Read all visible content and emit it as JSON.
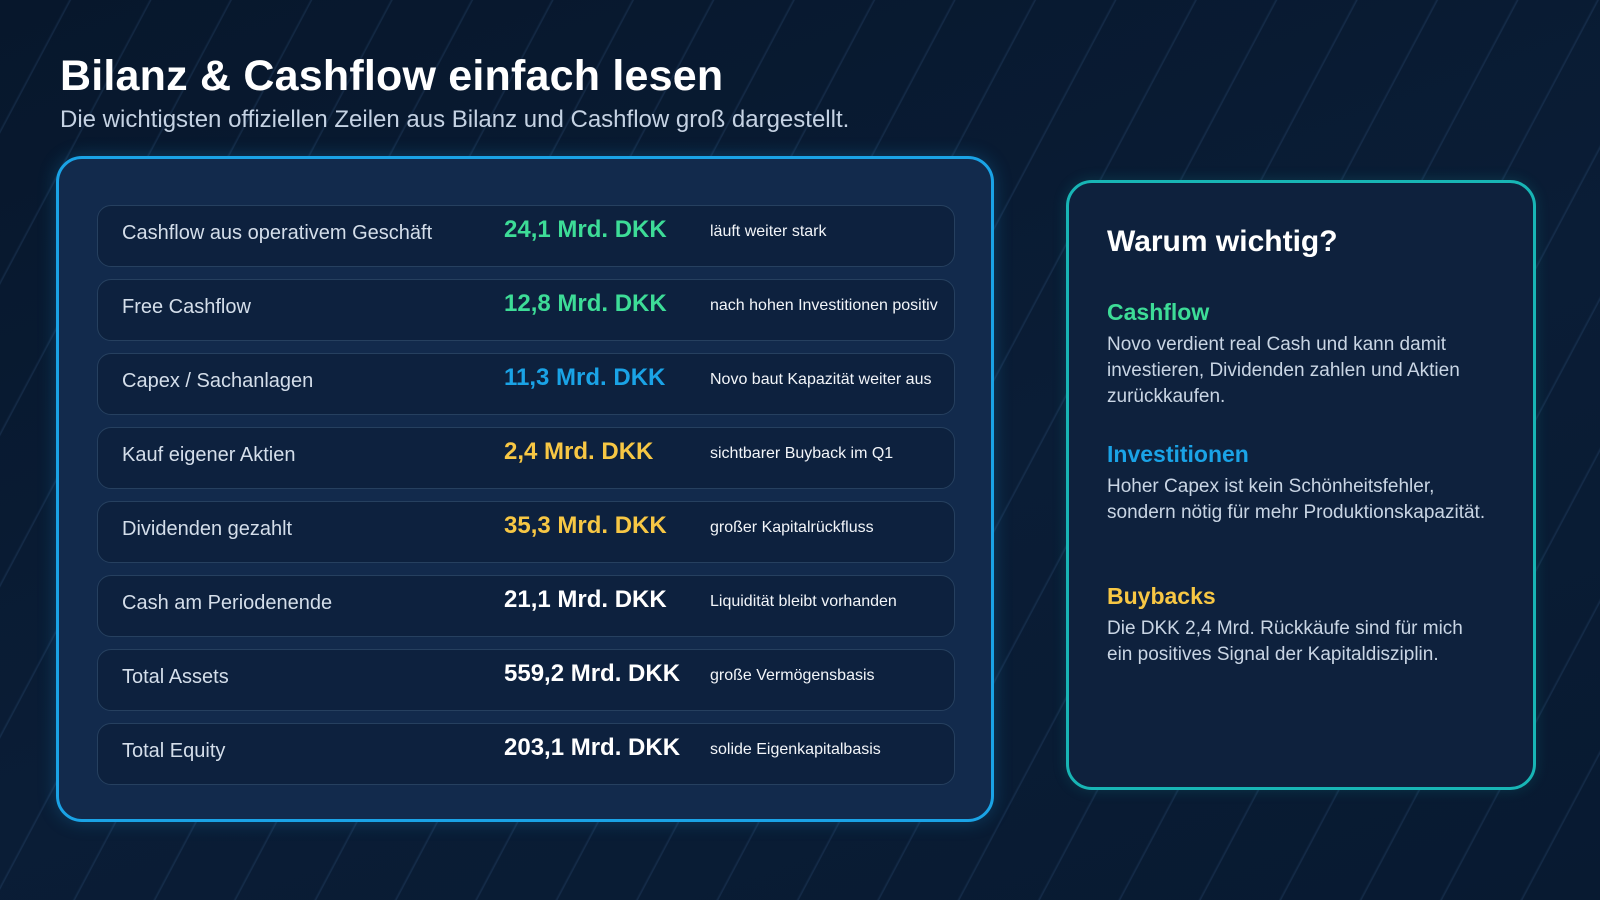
{
  "header": {
    "title": "Bilanz & Cashflow einfach lesen",
    "subtitle": "Die wichtigsten offiziellen Zeilen aus Bilanz und Cashflow groß dargestellt."
  },
  "rows": [
    {
      "label": "Cashflow aus operativem Geschäft",
      "value": "24,1 Mrd. DKK",
      "note": "läuft weiter stark",
      "value_color": "#3ddc97"
    },
    {
      "label": "Free Cashflow",
      "value": "12,8 Mrd. DKK",
      "note": "nach hohen Investitionen positiv",
      "value_color": "#3ddc97"
    },
    {
      "label": "Capex / Sachanlagen",
      "value": "11,3 Mrd. DKK",
      "note": "Novo baut Kapazität weiter aus",
      "value_color": "#1aa3e6"
    },
    {
      "label": "Kauf eigener Aktien",
      "value": "2,4 Mrd. DKK",
      "note": "sichtbarer Buyback im Q1",
      "value_color": "#f7c744"
    },
    {
      "label": "Dividenden gezahlt",
      "value": "35,3 Mrd. DKK",
      "note": "großer Kapitalrückfluss",
      "value_color": "#f7c744"
    },
    {
      "label": "Cash am Periodenende",
      "value": "21,1 Mrd. DKK",
      "note": "Liquidität bleibt vorhanden",
      "value_color": "#ffffff"
    },
    {
      "label": "Total Assets",
      "value": "559,2 Mrd. DKK",
      "note": "große Vermögensbasis",
      "value_color": "#ffffff"
    },
    {
      "label": "Total Equity",
      "value": "203,1 Mrd. DKK",
      "note": "solide Eigenkapitalbasis",
      "value_color": "#ffffff"
    }
  ],
  "info": {
    "heading": "Warum wichtig?",
    "sections": [
      {
        "title": "Cashflow",
        "text": "Novo verdient real Cash und kann damit investieren, Dividenden zahlen und Aktien zurückkaufen.",
        "color": "#3ddc97"
      },
      {
        "title": "Investitionen",
        "text": "Hoher Capex ist kein Schönheitsfehler, sondern nötig für mehr Produktionskapazität.",
        "color": "#1aa3e6"
      },
      {
        "title": "Buybacks",
        "text": "Die DKK 2,4 Mrd. Rückkäufe sind für mich ein positives Signal der Kapitaldisziplin.",
        "color": "#f7c744"
      }
    ]
  }
}
